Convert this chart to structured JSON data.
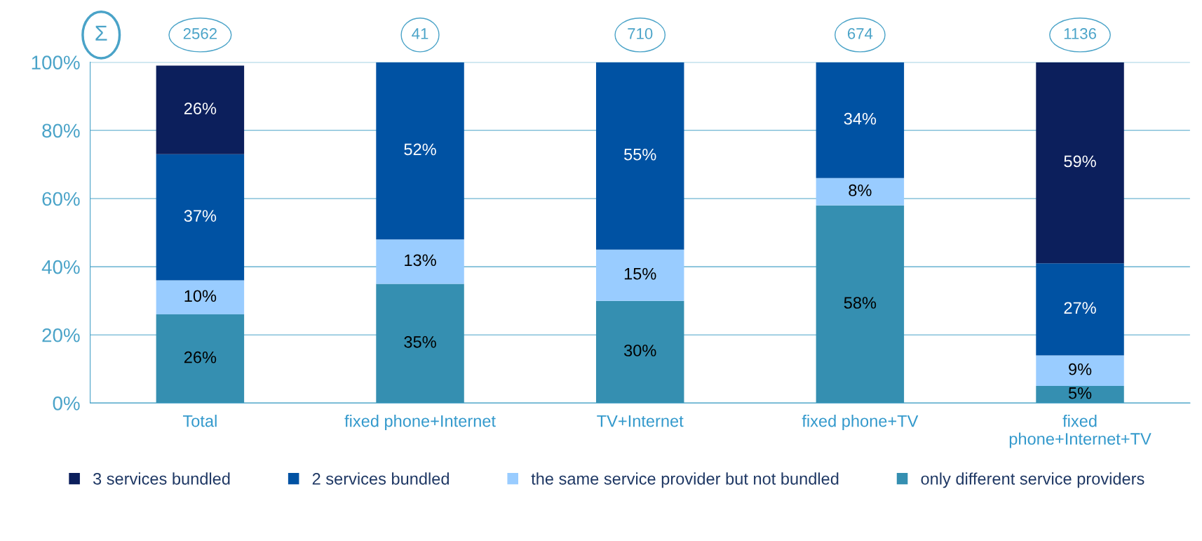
{
  "chart_data": {
    "type": "bar",
    "stacked": true,
    "categories": [
      "Total",
      "fixed phone+Internet",
      "TV+Internet",
      "fixed phone+TV",
      "fixed\nphone+Internet+TV"
    ],
    "series": [
      {
        "name": "only different service providers",
        "color": "#358fb1",
        "values": [
          26,
          35,
          30,
          58,
          5
        ],
        "value_labels": [
          "26%",
          "35%",
          "30%",
          "58%",
          "5%"
        ]
      },
      {
        "name": "the same service provider but not bundled",
        "color": "#99ccff",
        "values": [
          10,
          13,
          15,
          8,
          9
        ],
        "value_labels": [
          "10%",
          "13%",
          "15%",
          "8%",
          "9%"
        ]
      },
      {
        "name": "2 services bundled",
        "color": "#0052a3",
        "values": [
          37,
          52,
          55,
          34,
          27
        ],
        "value_labels": [
          "37%",
          "52%",
          "55%",
          "34%",
          "27%"
        ]
      },
      {
        "name": "3 services bundled",
        "color": "#0c1f5c",
        "values": [
          26,
          null,
          null,
          null,
          59
        ],
        "value_labels": [
          "26%",
          null,
          null,
          null,
          "59%"
        ]
      }
    ],
    "ylim": [
      0,
      100
    ],
    "yticks": [
      {
        "value": 0,
        "label": "0%"
      },
      {
        "value": 20,
        "label": "20%"
      },
      {
        "value": 40,
        "label": "40%"
      },
      {
        "value": 60,
        "label": "60%"
      },
      {
        "value": 80,
        "label": "80%"
      },
      {
        "value": 100,
        "label": "100%"
      }
    ],
    "grid": "y",
    "legend": "bottom",
    "annotations": [
      "Σ",
      "2562",
      "41",
      "710",
      "674",
      "1136"
    ]
  }
}
